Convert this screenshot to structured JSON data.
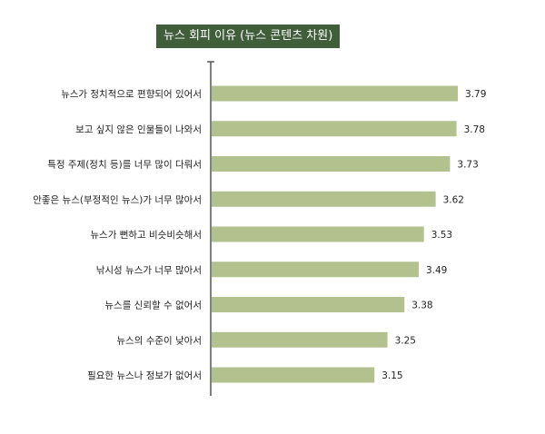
{
  "chart_data": {
    "type": "bar",
    "orientation": "horizontal",
    "title": "뉴스 회피 이유 (뉴스 콘텐츠 차원)",
    "categories": [
      "뉴스가 정치적으로 편향되어 있어서",
      "보고 싶지 않은 인물들이 나와서",
      "특정 주제(정치 등)를 너무 많이 다뤄서",
      "안좋은 뉴스(부정적인 뉴스)가 너무 많아서",
      "뉴스가 뻔하고 비슷비슷해서",
      "낚시성 뉴스가 너무 많아서",
      "뉴스를 신뢰할 수 없어서",
      "뉴스의 수준이 낮아서",
      "필요한 뉴스나 정보가 없어서"
    ],
    "values": [
      3.79,
      3.78,
      3.73,
      3.62,
      3.53,
      3.49,
      3.38,
      3.25,
      3.15
    ],
    "value_labels": [
      "3.79",
      "3.78",
      "3.73",
      "3.62",
      "3.53",
      "3.49",
      "3.38",
      "3.25",
      "3.15"
    ],
    "xlim": [
      1.9,
      3.79
    ],
    "grid": false,
    "colors": {
      "bar": "#b3c18f",
      "axis": "#555555",
      "title_bg": "#3f5e39"
    }
  }
}
